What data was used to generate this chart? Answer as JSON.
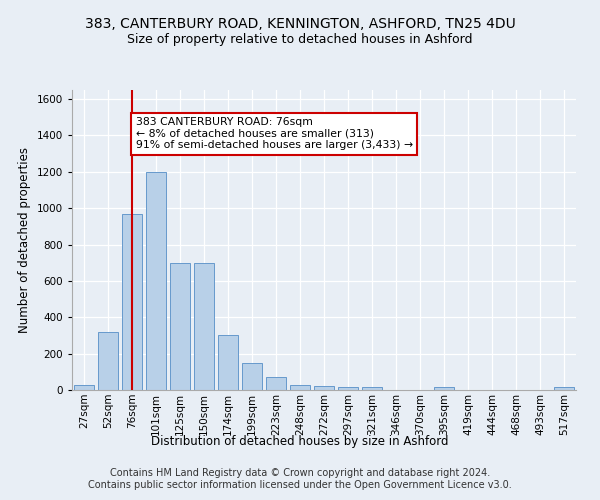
{
  "title": "383, CANTERBURY ROAD, KENNINGTON, ASHFORD, TN25 4DU",
  "subtitle": "Size of property relative to detached houses in Ashford",
  "xlabel": "Distribution of detached houses by size in Ashford",
  "ylabel": "Number of detached properties",
  "categories": [
    "27sqm",
    "52sqm",
    "76sqm",
    "101sqm",
    "125sqm",
    "150sqm",
    "174sqm",
    "199sqm",
    "223sqm",
    "248sqm",
    "272sqm",
    "297sqm",
    "321sqm",
    "346sqm",
    "370sqm",
    "395sqm",
    "419sqm",
    "444sqm",
    "468sqm",
    "493sqm",
    "517sqm"
  ],
  "values": [
    30,
    320,
    970,
    1200,
    700,
    700,
    305,
    150,
    70,
    30,
    20,
    15,
    15,
    0,
    0,
    15,
    0,
    0,
    0,
    0,
    15
  ],
  "bar_color": "#b8d0e8",
  "bar_edge_color": "#6699cc",
  "highlight_bar_index": 2,
  "highlight_line_color": "#cc0000",
  "annotation_text": "383 CANTERBURY ROAD: 76sqm\n← 8% of detached houses are smaller (313)\n91% of semi-detached houses are larger (3,433) →",
  "annotation_box_facecolor": "#ffffff",
  "annotation_box_edgecolor": "#cc0000",
  "ylim": [
    0,
    1650
  ],
  "yticks": [
    0,
    200,
    400,
    600,
    800,
    1000,
    1200,
    1400,
    1600
  ],
  "footer_text": "Contains HM Land Registry data © Crown copyright and database right 2024.\nContains public sector information licensed under the Open Government Licence v3.0.",
  "bg_color": "#e8eef5",
  "plot_bg_color": "#e8eef5",
  "title_fontsize": 10,
  "subtitle_fontsize": 9,
  "axis_label_fontsize": 8.5,
  "tick_fontsize": 7.5,
  "footer_fontsize": 7
}
